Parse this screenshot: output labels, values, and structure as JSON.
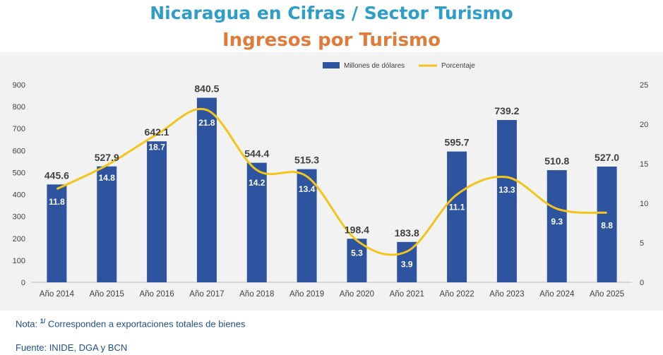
{
  "header": {
    "title": "Nicaragua en Cifras / Sector Turismo",
    "subtitle": "Ingresos por Turismo"
  },
  "chart_data": {
    "type": "bar",
    "categories": [
      "Año 2014",
      "Año 2015",
      "Año 2016",
      "Año 2017",
      "Año 2018",
      "Año 2019",
      "Año 2020",
      "Año 2021",
      "Año 2022",
      "Año 2023",
      "Año 2024",
      "Año 2025"
    ],
    "series": [
      {
        "name": "Millones de dólares",
        "type": "bar",
        "axis": "left",
        "color": "#2e54a0",
        "values": [
          445.6,
          527.9,
          642.1,
          840.5,
          544.4,
          515.3,
          198.4,
          183.8,
          595.7,
          739.2,
          510.8,
          527.0
        ]
      },
      {
        "name": "Porcentaje",
        "type": "line",
        "axis": "right",
        "color": "#f2c51a",
        "values": [
          11.8,
          14.8,
          18.7,
          21.8,
          14.2,
          13.4,
          5.3,
          3.9,
          11.1,
          13.3,
          9.3,
          8.8
        ]
      }
    ],
    "y_left": {
      "min": 0,
      "max": 900,
      "ticks": [
        0,
        100,
        200,
        300,
        400,
        500,
        600,
        700,
        800,
        900
      ]
    },
    "y_right": {
      "min": 0,
      "max": 25,
      "ticks": [
        0,
        5,
        10,
        15,
        20,
        25
      ]
    },
    "legend": "top-center",
    "grid": false
  },
  "footer": {
    "note_prefix": "Nota: ",
    "note_sup": "1/",
    "note_text": " Corresponden a exportaciones totales de bienes",
    "source": "Fuente:  INIDE, DGA y BCN"
  }
}
